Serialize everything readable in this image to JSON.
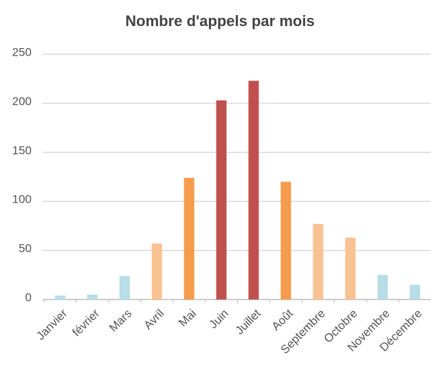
{
  "chart_data": {
    "type": "bar",
    "title": "Nombre d'appels par mois",
    "categories": [
      "Janvier",
      "février",
      "Mars",
      "Avril",
      "Mai",
      "Juin",
      "Juillet",
      "Août",
      "Septembre",
      "Octobre",
      "Novembre",
      "Décembre"
    ],
    "values": [
      4,
      5,
      24,
      57,
      124,
      203,
      223,
      120,
      77,
      63,
      25,
      15
    ],
    "colors": [
      "#b7dde6",
      "#b7dde6",
      "#b7dde6",
      "#f9c292",
      "#f59b4b",
      "#c0504d",
      "#c0504d",
      "#f59b4b",
      "#f9c292",
      "#f9c292",
      "#b7dde6",
      "#b7dde6"
    ],
    "ylim": [
      0,
      250
    ],
    "yticks": [
      0,
      50,
      100,
      150,
      200,
      250
    ],
    "grid": true
  }
}
